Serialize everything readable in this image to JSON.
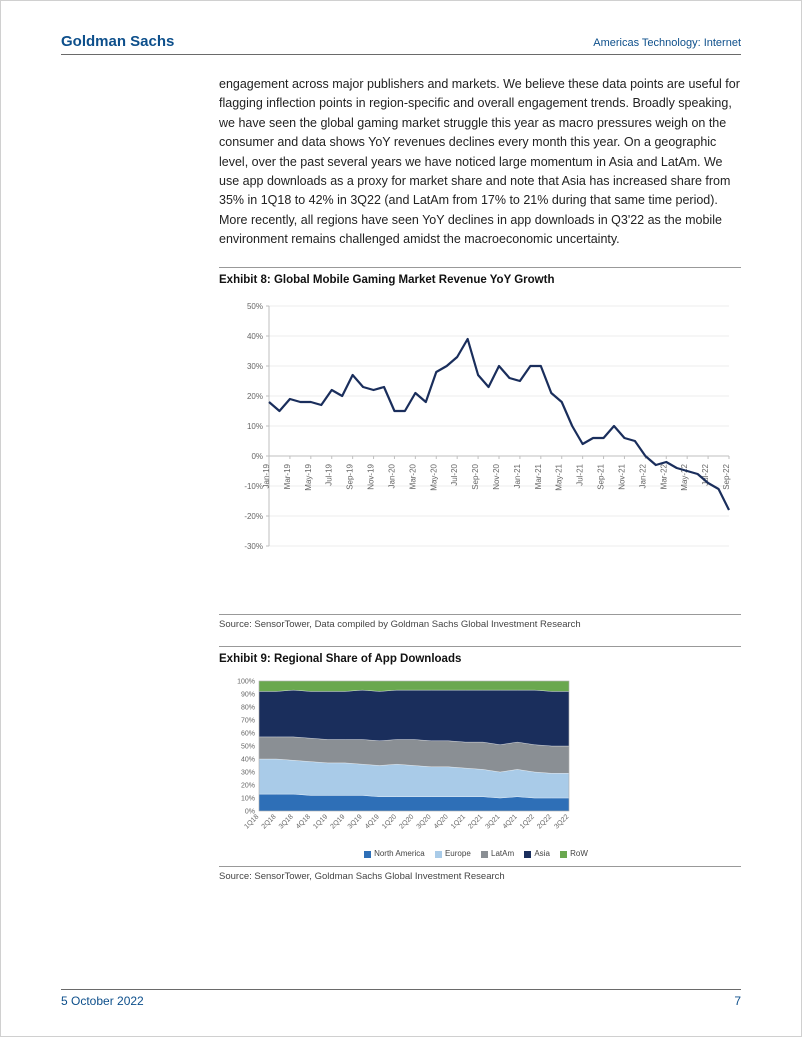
{
  "header": {
    "company": "Goldman Sachs",
    "section": "Americas Technology: Internet"
  },
  "body_paragraph": "engagement across major publishers and markets. We believe these data points are useful for flagging inflection points in region-specific and overall engagement trends. Broadly speaking, we have seen the global gaming market struggle this year as macro pressures weigh on the consumer and data shows YoY revenues declines every month this year. On a geographic level, over the past several years we have noticed large momentum in Asia and LatAm. We use app downloads as a proxy for market share and note that Asia has increased share from 35% in 1Q18 to 42% in 3Q22 (and LatAm from 17% to 21% during that same time period). More recently, all regions have seen YoY declines in app downloads in Q3'22 as the mobile environment remains challenged amidst the macroeconomic uncertainty.",
  "exhibit8": {
    "title": "Exhibit 8: Global Mobile Gaming Market Revenue YoY Growth",
    "source": "Source: SensorTower, Data compiled by Goldman Sachs Global Investment Research",
    "type": "line",
    "line_color": "#1a2e5c",
    "line_width": 2.2,
    "background_color": "#ffffff",
    "grid_color": "#d9d9d9",
    "axis_color": "#bfbfbf",
    "label_fontsize": 8,
    "xlabels": [
      "Jan-19",
      "Mar-19",
      "May-19",
      "Jul-19",
      "Sep-19",
      "Nov-19",
      "Jan-20",
      "Mar-20",
      "May-20",
      "Jul-20",
      "Sep-20",
      "Nov-20",
      "Jan-21",
      "Mar-21",
      "May-21",
      "Jul-21",
      "Sep-21",
      "Nov-21",
      "Jan-22",
      "Mar-22",
      "May-22",
      "Jul-22",
      "Sep-22"
    ],
    "ylim": [
      -30,
      50
    ],
    "ytick_step": 10,
    "yticks": [
      "-30%",
      "-20%",
      "-10%",
      "0%",
      "10%",
      "20%",
      "30%",
      "40%",
      "50%"
    ],
    "values": [
      18,
      15,
      19,
      18,
      18,
      17,
      22,
      20,
      27,
      23,
      22,
      23,
      15,
      15,
      21,
      18,
      28,
      30,
      33,
      39,
      27,
      23,
      30,
      26,
      25,
      30,
      30,
      21,
      18,
      10,
      4,
      6,
      6,
      10,
      6,
      5,
      0,
      -3,
      -2,
      -4,
      -5,
      -6,
      -9,
      -11,
      -18
    ]
  },
  "exhibit9": {
    "title": "Exhibit 9: Regional Share of App Downloads",
    "source": "Source: SensorTower, Goldman Sachs Global Investment Research",
    "type": "stacked_area",
    "background_color": "#ffffff",
    "grid_color": "#d9d9d9",
    "label_fontsize": 7,
    "ylim": [
      0,
      100
    ],
    "ytick_step": 10,
    "yticks": [
      "0%",
      "10%",
      "20%",
      "30%",
      "40%",
      "50%",
      "60%",
      "70%",
      "80%",
      "90%",
      "100%"
    ],
    "xlabels": [
      "1Q18",
      "2Q18",
      "3Q18",
      "4Q18",
      "1Q19",
      "2Q19",
      "3Q19",
      "4Q19",
      "1Q20",
      "2Q20",
      "3Q20",
      "4Q20",
      "1Q21",
      "2Q21",
      "3Q21",
      "4Q21",
      "1Q22",
      "2Q22",
      "3Q22"
    ],
    "series": [
      {
        "name": "North America",
        "color": "#2e6fb7",
        "values": [
          13,
          13,
          13,
          12,
          12,
          12,
          12,
          11,
          11,
          11,
          11,
          11,
          11,
          11,
          10,
          11,
          10,
          10,
          10
        ]
      },
      {
        "name": "Europe",
        "color": "#a9cbe8",
        "values": [
          27,
          27,
          26,
          26,
          25,
          25,
          24,
          24,
          25,
          24,
          23,
          23,
          22,
          21,
          20,
          21,
          20,
          19,
          19
        ]
      },
      {
        "name": "LatAm",
        "color": "#8a8f94",
        "values": [
          17,
          17,
          18,
          18,
          18,
          18,
          19,
          19,
          19,
          20,
          20,
          20,
          20,
          21,
          21,
          21,
          21,
          21,
          21
        ]
      },
      {
        "name": "Asia",
        "color": "#1a2e5c",
        "values": [
          35,
          35,
          36,
          36,
          37,
          37,
          38,
          38,
          38,
          38,
          39,
          39,
          40,
          40,
          42,
          40,
          42,
          42,
          42
        ]
      },
      {
        "name": "RoW",
        "color": "#6aa84f",
        "values": [
          8,
          8,
          7,
          8,
          8,
          8,
          7,
          8,
          7,
          7,
          7,
          7,
          7,
          7,
          7,
          7,
          7,
          8,
          8
        ]
      }
    ],
    "legend_labels": [
      "North America",
      "Europe",
      "LatAm",
      "Asia",
      "RoW"
    ]
  },
  "footer": {
    "date": "5 October 2022",
    "page": "7"
  }
}
